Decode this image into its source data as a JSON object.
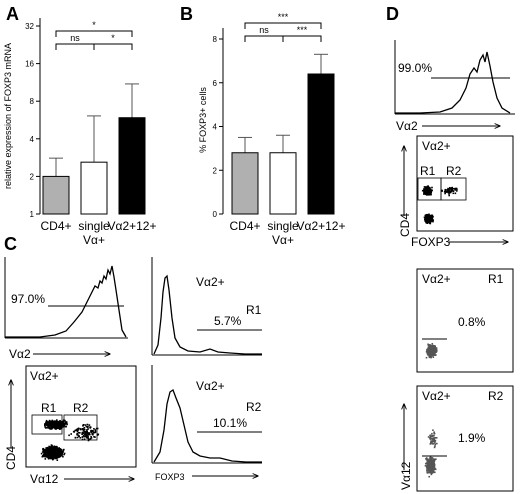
{
  "panel_letters": {
    "a": "A",
    "b": "B",
    "c": "C",
    "d": "D"
  },
  "chart_data": [
    {
      "panel": "A",
      "type": "bar",
      "ylabel": "relative expression of FOXP3 mRNA",
      "y_scale": "log2",
      "ylim": [
        1,
        32
      ],
      "y_ticks": [
        "1",
        "2",
        "4",
        "8",
        "16",
        "32"
      ],
      "categories": [
        "CD4+",
        "single Vα+",
        "Vα2+12+"
      ],
      "values": [
        2.0,
        2.6,
        5.9
      ],
      "errors": [
        0.8,
        3.5,
        5.1
      ],
      "bar_colors": [
        "#b0b0b0",
        "#ffffff",
        "#000000"
      ],
      "significance": [
        {
          "from": 0,
          "to": 1,
          "label": "ns"
        },
        {
          "from": 1,
          "to": 2,
          "label": "*"
        },
        {
          "from": 0,
          "to": 2,
          "label": "*"
        }
      ]
    },
    {
      "panel": "B",
      "type": "bar",
      "ylabel": "% FOXP3+ cells",
      "ylim": [
        0,
        8
      ],
      "y_ticks": [
        "0",
        "2",
        "4",
        "6",
        "8"
      ],
      "categories": [
        "CD4+",
        "single Vα+",
        "Vα2+12+"
      ],
      "values": [
        2.8,
        2.8,
        6.4
      ],
      "errors": [
        0.7,
        0.8,
        0.9
      ],
      "bar_colors": [
        "#b0b0b0",
        "#ffffff",
        "#000000"
      ],
      "significance": [
        {
          "from": 0,
          "to": 1,
          "label": "ns"
        },
        {
          "from": 1,
          "to": 2,
          "label": "***"
        },
        {
          "from": 0,
          "to": 2,
          "label": "***"
        }
      ]
    }
  ],
  "panel_c": {
    "hist_va2": {
      "percent": "97.0%",
      "xlabel": "Vα2"
    },
    "dot": {
      "gate": "Vα2+",
      "ylabel": "CD4",
      "xlabel": "Vα12",
      "r1": "R1",
      "r2": "R2"
    },
    "hist_r1": {
      "gate": "Vα2+",
      "region": "R1",
      "percent": "5.7%"
    },
    "hist_r2": {
      "gate": "Vα2+",
      "region": "R2",
      "percent": "10.1%",
      "xlabel": "FOXP3"
    }
  },
  "panel_d": {
    "hist_va2": {
      "percent": "99.0%",
      "xlabel": "Vα2"
    },
    "dot": {
      "gate": "Vα2+",
      "ylabel": "CD4",
      "xlabel": "FOXP3",
      "r1": "R1",
      "r2": "R2"
    },
    "dot_r1": {
      "gate": "Vα2+",
      "region": "R1",
      "percent": "0.8%"
    },
    "dot_r2": {
      "gate": "Vα2+",
      "region": "R2",
      "percent": "1.9%",
      "ylabel": "Vα12"
    }
  }
}
